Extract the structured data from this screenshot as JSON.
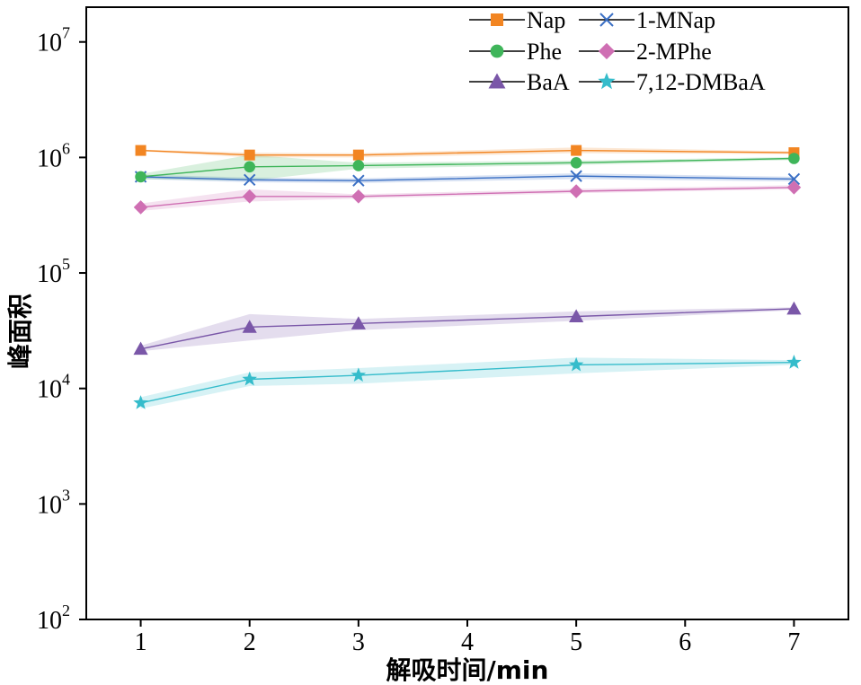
{
  "chart_data": {
    "type": "line",
    "title": "",
    "xlabel": "解吸时间/min",
    "ylabel": "峰面积",
    "x": [
      1,
      2,
      3,
      5,
      7
    ],
    "xlim": [
      0.5,
      7.5
    ],
    "xticks": [
      "1",
      "2",
      "3",
      "4",
      "5",
      "6",
      "7"
    ],
    "yscale": "log",
    "ylim": [
      100,
      20000000
    ],
    "yticks": [
      {
        "value": 100,
        "base": "10",
        "exp": "2"
      },
      {
        "value": 1000,
        "base": "10",
        "exp": "3"
      },
      {
        "value": 10000,
        "base": "10",
        "exp": "4"
      },
      {
        "value": 100000,
        "base": "10",
        "exp": "5"
      },
      {
        "value": 1000000,
        "base": "10",
        "exp": "6"
      },
      {
        "value": 10000000,
        "base": "10",
        "exp": "7"
      }
    ],
    "grid": false,
    "legend_position": "top-right",
    "series": [
      {
        "name": "Nap",
        "color": "#f28522",
        "marker": "square",
        "values": [
          1150000,
          1050000,
          1050000,
          1150000,
          1100000
        ],
        "band": [
          [
            1130000,
            1170000
          ],
          [
            1000000,
            1100000
          ],
          [
            1000000,
            1090000
          ],
          [
            1090000,
            1220000
          ],
          [
            1070000,
            1130000
          ]
        ]
      },
      {
        "name": "1-MNap",
        "color": "#3a6fc4",
        "marker": "x",
        "values": [
          680000,
          640000,
          630000,
          690000,
          650000
        ],
        "band": [
          [
            650000,
            710000
          ],
          [
            610000,
            670000
          ],
          [
            600000,
            660000
          ],
          [
            650000,
            730000
          ],
          [
            620000,
            680000
          ]
        ]
      },
      {
        "name": "Phe",
        "color": "#3fb55a",
        "marker": "circle",
        "values": [
          680000,
          830000,
          850000,
          900000,
          980000
        ],
        "band": [
          [
            650000,
            720000
          ],
          [
            630000,
            1050000
          ],
          [
            800000,
            900000
          ],
          [
            860000,
            940000
          ],
          [
            950000,
            1010000
          ]
        ]
      },
      {
        "name": "2-MPhe",
        "color": "#cf6fb3",
        "marker": "diamond",
        "values": [
          370000,
          460000,
          460000,
          510000,
          550000
        ],
        "band": [
          [
            345000,
            400000
          ],
          [
            415000,
            530000
          ],
          [
            440000,
            480000
          ],
          [
            490000,
            535000
          ],
          [
            530000,
            575000
          ]
        ]
      },
      {
        "name": "BaA",
        "color": "#7a57a8",
        "marker": "triangle",
        "values": [
          22000,
          34000,
          36500,
          42000,
          49000
        ],
        "band": [
          [
            21000,
            23500
          ],
          [
            26000,
            44000
          ],
          [
            32000,
            40000
          ],
          [
            38500,
            46500
          ],
          [
            47500,
            50500
          ]
        ]
      },
      {
        "name": "7,12-DMBaA",
        "color": "#35bccb",
        "marker": "star",
        "values": [
          7500,
          12000,
          13000,
          16000,
          16800
        ],
        "band": [
          [
            6700,
            8400
          ],
          [
            10500,
            13800
          ],
          [
            11000,
            15000
          ],
          [
            13500,
            18500
          ],
          [
            16000,
            17600
          ]
        ]
      }
    ]
  }
}
